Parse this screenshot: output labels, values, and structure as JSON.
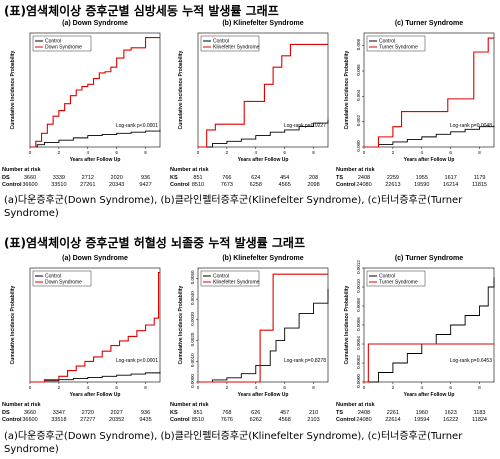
{
  "section1": {
    "title": "(표)염색체이상 증후군별 심방세동 누적 발생률 그래프",
    "caption": "(a)다운증후군(Down Syndrome), (b)클라인펠터증후군(Klinefelter Syndrome), (c)터너증후군(Turner Syndrome)"
  },
  "section2": {
    "title": "(표)염색체이상 증후군별 허혈성 뇌졸중 누적 발생률 그래프",
    "caption": "(a)다운증후군(Down Syndrome), (b)클라인펠터증후군(Klinefelter Syndrome), (c)터너증후군(Turner Syndrome)"
  },
  "colors": {
    "control": "#000000",
    "case": "#e00000"
  },
  "chart_data": [
    {
      "type": "line",
      "title": "(a) Down Syndrome",
      "xlabel": "Years after Follow Up",
      "ylabel": "Cumulative Incidence Probability",
      "xticks": [
        "0",
        "2",
        "4",
        "6",
        "8"
      ],
      "yticks": [],
      "xlim": [
        0,
        9
      ],
      "ylim": [
        0,
        1
      ],
      "pvalue": "Log-rank p<0.0001",
      "series": [
        {
          "name": "Control",
          "x": [
            0,
            0.5,
            1,
            2,
            3,
            4,
            5,
            6,
            7,
            8,
            9
          ],
          "y": [
            0,
            0.02,
            0.04,
            0.06,
            0.08,
            0.1,
            0.11,
            0.12,
            0.13,
            0.14,
            0.15
          ]
        },
        {
          "name": "Down Syndrome",
          "x": [
            0,
            0.4,
            0.8,
            1.2,
            1.6,
            2,
            2.4,
            2.8,
            3.2,
            3.6,
            4,
            4.4,
            4.8,
            5.2,
            5.6,
            6,
            6.5,
            7,
            7.5,
            8,
            9
          ],
          "y": [
            0,
            0.05,
            0.12,
            0.2,
            0.27,
            0.32,
            0.38,
            0.45,
            0.5,
            0.53,
            0.55,
            0.6,
            0.65,
            0.66,
            0.7,
            0.78,
            0.85,
            0.87,
            0.87,
            0.96,
            0.96
          ]
        }
      ],
      "risk": {
        "header": "Number at risk",
        "rows": [
          {
            "label": "DS",
            "values": [
              "3660",
              "3339",
              "2712",
              "2020",
              "936"
            ]
          },
          {
            "label": "Control",
            "values": [
              "36600",
              "33510",
              "27261",
              "20343",
              "9427"
            ]
          }
        ]
      }
    },
    {
      "type": "line",
      "title": "(b) Klinefelter Syndrome",
      "xlabel": "Years after Follow Up",
      "ylabel": "Cumulative Incidence Probability",
      "xticks": [
        "0",
        "2",
        "4",
        "6",
        "8"
      ],
      "yticks": [],
      "xlim": [
        0,
        9
      ],
      "ylim": [
        0,
        1
      ],
      "pvalue": "Log-rank p=0.0227",
      "series": [
        {
          "name": "Control",
          "x": [
            0,
            1,
            2,
            3,
            4,
            5,
            6,
            7,
            8,
            9
          ],
          "y": [
            0,
            0.03,
            0.05,
            0.07,
            0.1,
            0.13,
            0.15,
            0.18,
            0.21,
            0.24
          ]
        },
        {
          "name": "Klinefelter Syndrome",
          "x": [
            0,
            0.6,
            1.2,
            2.8,
            3.2,
            4.6,
            5.2,
            5.8,
            6.4,
            9
          ],
          "y": [
            0,
            0.15,
            0.2,
            0.2,
            0.4,
            0.55,
            0.7,
            0.8,
            0.9,
            0.9
          ]
        }
      ],
      "risk": {
        "header": "Number at risk",
        "rows": [
          {
            "label": "KS",
            "values": [
              "851",
              "766",
              "624",
              "454",
              "208"
            ]
          },
          {
            "label": "Control",
            "values": [
              "8510",
              "7673",
              "6258",
              "4565",
              "2098"
            ]
          }
        ]
      }
    },
    {
      "type": "line",
      "title": "(c) Turner Syndrome",
      "xlabel": "Years after Follow Up",
      "ylabel": "Cumulative Incidence Probability",
      "xticks": [
        "0",
        "2",
        "4",
        "6",
        "8"
      ],
      "yticks": [
        "0.000",
        "0.002",
        "0.004",
        "0.006",
        "0.008"
      ],
      "xlim": [
        0,
        9
      ],
      "ylim": [
        0,
        0.009
      ],
      "pvalue": "Log-rank p=0.0048",
      "series": [
        {
          "name": "Control",
          "x": [
            0,
            1,
            2,
            3,
            4,
            5,
            6,
            7,
            8,
            9
          ],
          "y": [
            0,
            0.0002,
            0.0004,
            0.0006,
            0.0008,
            0.001,
            0.0012,
            0.0014,
            0.0016,
            0.0017
          ]
        },
        {
          "name": "Turner Syndrome",
          "x": [
            0,
            1,
            2,
            2.6,
            4.6,
            5.8,
            7.2,
            7.6,
            8.6,
            9
          ],
          "y": [
            0,
            0.0008,
            0.0016,
            0.0028,
            0.0028,
            0.0038,
            0.0038,
            0.0075,
            0.0086,
            0.0086
          ]
        }
      ],
      "risk": {
        "header": "Number at risk",
        "rows": [
          {
            "label": "TS",
            "values": [
              "2408",
              "2259",
              "1955",
              "1617",
              "1179"
            ]
          },
          {
            "label": "Control",
            "values": [
              "24080",
              "22613",
              "19590",
              "16214",
              "11815"
            ]
          }
        ]
      }
    },
    {
      "type": "line",
      "title": "(a) Down Syndrome",
      "xlabel": "Years after Follow Up",
      "ylabel": "Cumulative Incidence Probability",
      "xticks": [
        "0",
        "2",
        "4",
        "6",
        "8"
      ],
      "yticks": [],
      "xlim": [
        0,
        9
      ],
      "ylim": [
        0,
        1
      ],
      "pvalue": "Log-rank p<0.0001",
      "series": [
        {
          "name": "Control",
          "x": [
            0,
            1,
            2,
            3,
            4,
            5,
            6,
            7,
            8,
            9
          ],
          "y": [
            0,
            0.01,
            0.02,
            0.03,
            0.04,
            0.05,
            0.06,
            0.07,
            0.08,
            0.09
          ]
        },
        {
          "name": "Down Syndrome",
          "x": [
            0,
            1,
            2,
            2.6,
            3.2,
            3.8,
            4.4,
            5,
            5.6,
            6.2,
            6.8,
            7.4,
            8,
            8.6,
            8.9,
            9
          ],
          "y": [
            0,
            0.02,
            0.05,
            0.1,
            0.14,
            0.18,
            0.22,
            0.27,
            0.32,
            0.36,
            0.4,
            0.45,
            0.5,
            0.56,
            0.96,
            0.96
          ]
        }
      ],
      "risk": {
        "header": "Number at risk",
        "rows": [
          {
            "label": "DS",
            "values": [
              "3660",
              "3347",
              "2720",
              "2027",
              "936"
            ]
          },
          {
            "label": "Control",
            "values": [
              "36600",
              "33518",
              "27277",
              "20352",
              "9435"
            ]
          }
        ]
      }
    },
    {
      "type": "line",
      "title": "(b) Klinefelter Syndrome",
      "xlabel": "Years after Follow Up",
      "ylabel": "Cumulative Incidence Probability",
      "xticks": [
        "0",
        "2",
        "4",
        "6",
        "8"
      ],
      "yticks": [
        "0.0000",
        "0.0010",
        "0.0020",
        "0.0030",
        "0.0040",
        "0.0050"
      ],
      "xlim": [
        0,
        9
      ],
      "ylim": [
        0,
        0.0055
      ],
      "pvalue": "Log-rank p=0.8278",
      "series": [
        {
          "name": "Control",
          "x": [
            0,
            1,
            2,
            3,
            4,
            5,
            5.4,
            6,
            7,
            8,
            9
          ],
          "y": [
            0,
            0.0001,
            0.0002,
            0.0004,
            0.0008,
            0.0015,
            0.002,
            0.0026,
            0.0033,
            0.0038,
            0.0045
          ]
        },
        {
          "name": "Klinefelter Syndrome",
          "x": [
            0,
            4.3,
            4.3,
            5.2,
            5.2,
            9
          ],
          "y": [
            0,
            0,
            0.0025,
            0.0025,
            0.0052,
            0.0052
          ]
        }
      ],
      "risk": {
        "header": "Number at risk",
        "rows": [
          {
            "label": "KS",
            "values": [
              "851",
              "768",
              "626",
              "457",
              "210"
            ]
          },
          {
            "label": "Control",
            "values": [
              "8510",
              "7676",
              "6262",
              "4568",
              "2103"
            ]
          }
        ]
      }
    },
    {
      "type": "line",
      "title": "(c) Turner Syndrome",
      "xlabel": "Years after Follow Up",
      "ylabel": "Cumulative Incidence Probability",
      "xticks": [
        "0",
        "2",
        "4",
        "6",
        "8"
      ],
      "yticks": [
        "0.0000",
        "0.0002",
        "0.0004",
        "0.0006",
        "0.0008",
        "0.0010",
        "0.0012"
      ],
      "xlim": [
        0,
        9
      ],
      "ylim": [
        0,
        0.0012
      ],
      "pvalue": "Log-rank p=0.6453",
      "series": [
        {
          "name": "Control",
          "x": [
            0,
            1,
            2,
            3,
            4,
            5,
            6,
            7,
            8,
            8.6,
            9
          ],
          "y": [
            0,
            0.0001,
            0.0002,
            0.0003,
            0.0004,
            0.0005,
            0.0006,
            0.0007,
            0.0008,
            0.001,
            0.0011
          ]
        },
        {
          "name": "Turner Syndrome",
          "x": [
            0,
            0.3,
            0.3,
            9
          ],
          "y": [
            0,
            0,
            0.0004,
            0.0004
          ]
        }
      ],
      "risk": {
        "header": "Number at risk",
        "rows": [
          {
            "label": "TS",
            "values": [
              "2408",
              "2261",
              "1960",
              "1623",
              "1183"
            ]
          },
          {
            "label": "Control",
            "values": [
              "24080",
              "22614",
              "19594",
              "16222",
              "11824"
            ]
          }
        ]
      }
    }
  ]
}
